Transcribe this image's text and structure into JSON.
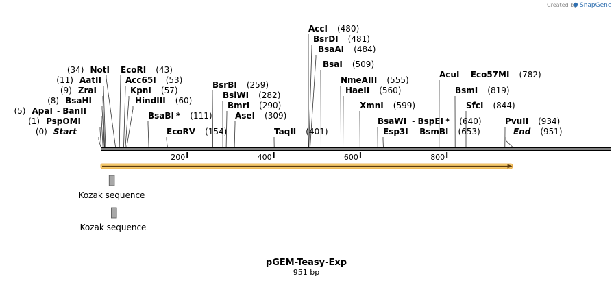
{
  "header": {
    "credit_prefix": "Created by",
    "credit_brand": "SnapGene"
  },
  "map": {
    "length": 951,
    "ticks": [
      200,
      400,
      600,
      800
    ],
    "tick_labels": [
      "200",
      "400",
      "600",
      "800"
    ],
    "sites": [
      {
        "id": "start",
        "name": "Start",
        "pos": 0,
        "pos_text": "(0)",
        "italic": true
      },
      {
        "id": "pspomi",
        "name": "PspOMI",
        "pos": 1,
        "pos_text": "(1)"
      },
      {
        "id": "apai",
        "name": "ApaI",
        "pos": 5,
        "pos_text": "(5)",
        "alt": "BanII"
      },
      {
        "id": "bsahi",
        "name": "BsaHI",
        "pos": 8,
        "pos_text": "(8)"
      },
      {
        "id": "zrai",
        "name": "ZraI",
        "pos": 9,
        "pos_text": "(9)"
      },
      {
        "id": "aatii",
        "name": "AatII",
        "pos": 11,
        "pos_text": "(11)"
      },
      {
        "id": "noti",
        "name": "NotI",
        "pos": 34,
        "pos_text": "(34)"
      },
      {
        "id": "ecori",
        "name": "EcoRI",
        "pos": 43,
        "pos_text": "(43)"
      },
      {
        "id": "acc65i",
        "name": "Acc65I",
        "pos": 53,
        "pos_text": "(53)"
      },
      {
        "id": "kpni",
        "name": "KpnI",
        "pos": 57,
        "pos_text": "(57)"
      },
      {
        "id": "hindiii",
        "name": "HindIII",
        "pos": 60,
        "pos_text": "(60)"
      },
      {
        "id": "bsabi",
        "name": "BsaBI",
        "pos": 111,
        "pos_text": "(111)",
        "star": "*"
      },
      {
        "id": "ecorv",
        "name": "EcoRV",
        "pos": 154,
        "pos_text": "(154)"
      },
      {
        "id": "bsrbi",
        "name": "BsrBI",
        "pos": 259,
        "pos_text": "(259)"
      },
      {
        "id": "bsiwi",
        "name": "BsiWI",
        "pos": 282,
        "pos_text": "(282)"
      },
      {
        "id": "bmri",
        "name": "BmrI",
        "pos": 290,
        "pos_text": "(290)"
      },
      {
        "id": "asei",
        "name": "AseI",
        "pos": 309,
        "pos_text": "(309)"
      },
      {
        "id": "taqii",
        "name": "TaqII",
        "pos": 401,
        "pos_text": "(401)"
      },
      {
        "id": "acci",
        "name": "AccI",
        "pos": 480,
        "pos_text": "(480)"
      },
      {
        "id": "bsrdi",
        "name": "BsrDI",
        "pos": 481,
        "pos_text": "(481)"
      },
      {
        "id": "bsaai",
        "name": "BsaAI",
        "pos": 484,
        "pos_text": "(484)"
      },
      {
        "id": "bsai",
        "name": "BsaI",
        "pos": 509,
        "pos_text": "(509)"
      },
      {
        "id": "nmeaiii",
        "name": "NmeAIII",
        "pos": 555,
        "pos_text": "(555)"
      },
      {
        "id": "haeii",
        "name": "HaeII",
        "pos": 560,
        "pos_text": "(560)"
      },
      {
        "id": "xmni",
        "name": "XmnI",
        "pos": 599,
        "pos_text": "(599)"
      },
      {
        "id": "bsawi",
        "name": "BsaWI",
        "pos": 640,
        "pos_text": "(640)",
        "alt": "BspEI",
        "alt_star": "*"
      },
      {
        "id": "esp3i",
        "name": "Esp3I",
        "pos": 653,
        "pos_text": "(653)",
        "alt": "BsmBI"
      },
      {
        "id": "acui",
        "name": "AcuI",
        "pos": 782,
        "pos_text": "(782)",
        "alt": "Eco57MI"
      },
      {
        "id": "bsmi",
        "name": "BsmI",
        "pos": 819,
        "pos_text": "(819)"
      },
      {
        "id": "sfci",
        "name": "SfcI",
        "pos": 844,
        "pos_text": "(844)"
      },
      {
        "id": "pvuii",
        "name": "PvuII",
        "pos": 934,
        "pos_text": "(934)"
      },
      {
        "id": "end",
        "name": "End",
        "pos": 951,
        "pos_text": "(951)",
        "italic": true
      }
    ],
    "features": [
      {
        "id": "kozak-1",
        "label": "Kozak sequence",
        "start": 21,
        "end": 30
      },
      {
        "id": "kozak-2",
        "label": "Kozak sequence",
        "start": 26,
        "end": 35
      }
    ],
    "orf": {
      "start": 0,
      "end": 951,
      "color": "#f0b040",
      "direction": "forward"
    }
  },
  "footer": {
    "plasmid_name": "pGEM-Teasy-Exp",
    "plasmid_length": "951 bp"
  },
  "colors": {
    "backbone": "#000000",
    "orf_fill": "#f3c76a",
    "orf_stroke": "#d48c1a",
    "feature_fill": "#a8a8a8",
    "feature_stroke": "#555555"
  }
}
